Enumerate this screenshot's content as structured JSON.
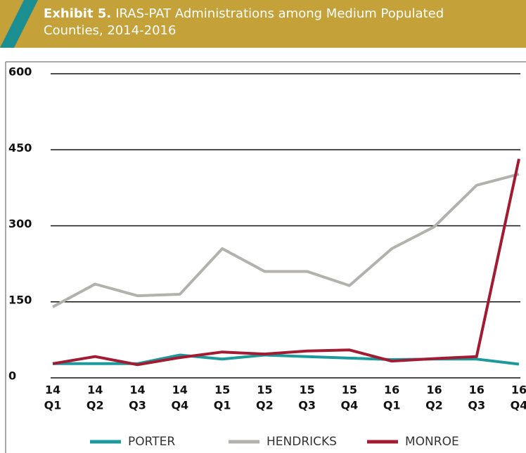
{
  "chart_data": {
    "type": "line",
    "exhibit": "Exhibit 5.",
    "title": "IRAS-PAT Administrations among Medium Populated Counties, 2014-2016",
    "categories": [
      [
        "14",
        "Q1"
      ],
      [
        "14",
        "Q2"
      ],
      [
        "14",
        "Q3"
      ],
      [
        "14",
        "Q4"
      ],
      [
        "15",
        "Q1"
      ],
      [
        "15",
        "Q2"
      ],
      [
        "15",
        "Q3"
      ],
      [
        "15",
        "Q4"
      ],
      [
        "16",
        "Q1"
      ],
      [
        "16",
        "Q2"
      ],
      [
        "16",
        "Q3"
      ],
      [
        "16",
        "Q4"
      ]
    ],
    "series": [
      {
        "name": "PORTER",
        "color": "#1c9a9b",
        "values": [
          28,
          28,
          28,
          45,
          37,
          45,
          42,
          39,
          36,
          37,
          37,
          27
        ]
      },
      {
        "name": "HENDRICKS",
        "color": "#b3b1ae",
        "values": [
          140,
          185,
          162,
          165,
          255,
          210,
          210,
          182,
          255,
          298,
          380,
          402
        ]
      },
      {
        "name": "MONROE",
        "color": "#a31b32",
        "values": [
          28,
          42,
          26,
          40,
          51,
          47,
          53,
          55,
          33,
          38,
          42,
          432
        ]
      }
    ],
    "ylim": [
      0,
      600
    ],
    "yticks": [
      0,
      150,
      300,
      450,
      600
    ],
    "grid": true,
    "legend": "bottom"
  }
}
